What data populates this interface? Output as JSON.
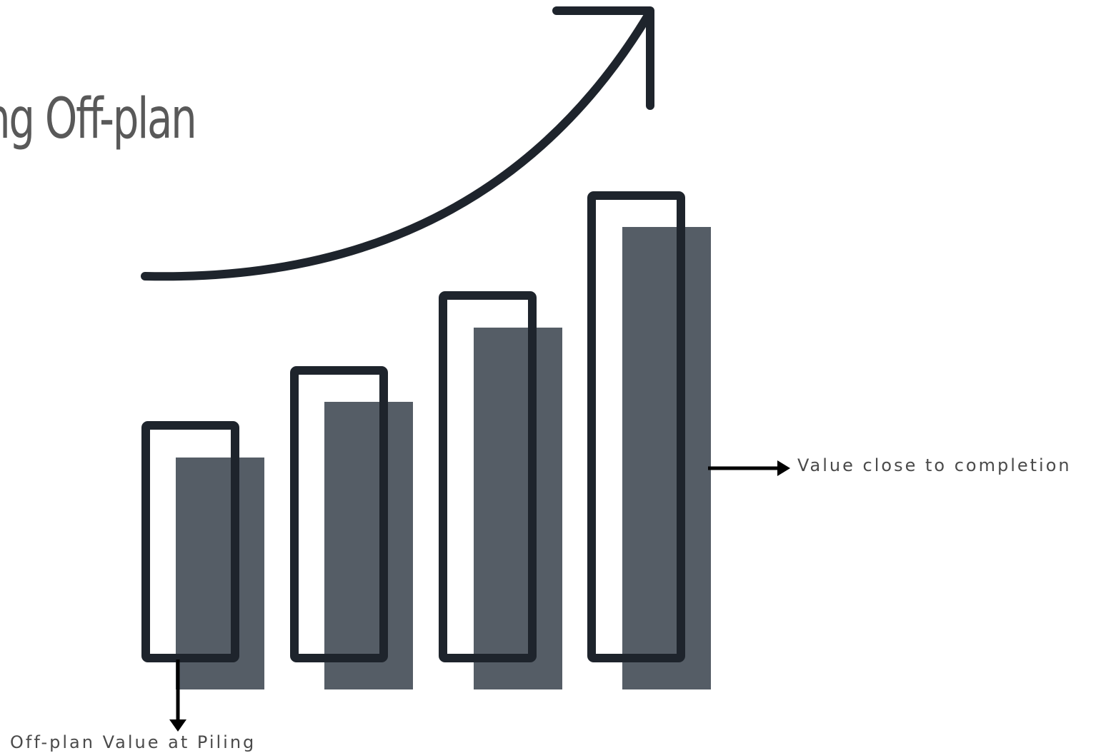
{
  "title": "ng Off-plan",
  "labels": {
    "completion": "Value close to completion",
    "piling": "Off-plan Value at Piling"
  },
  "colors": {
    "background": "#ffffff",
    "outline": "#1e242c",
    "fill": "#555d66",
    "title": "#595959",
    "label": "#4a4a4a"
  },
  "icons": {
    "trend": "curved-up-arrow-icon",
    "right-pointer": "arrow-right-icon",
    "down-pointer": "arrow-down-icon"
  }
}
